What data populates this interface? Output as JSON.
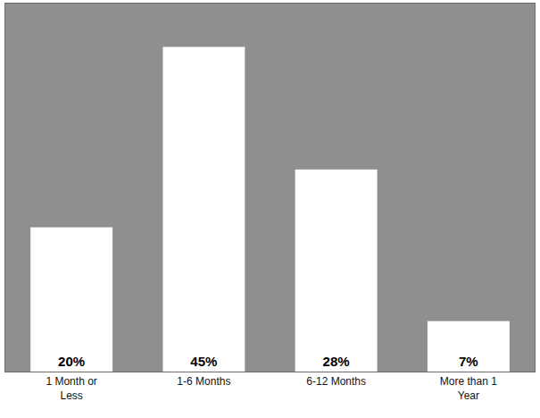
{
  "chart_data": {
    "type": "bar",
    "categories": [
      "1 Month or Less",
      "1-6 Months",
      "6-12 Months",
      "More than 1 Year"
    ],
    "values": [
      20,
      45,
      28,
      7
    ],
    "value_labels": [
      "20%",
      "45%",
      "28%",
      "7%"
    ],
    "color": "#ffffff",
    "ylim": [
      0,
      51
    ],
    "tick_labels": "x",
    "data_labels": true,
    "grid": false
  }
}
